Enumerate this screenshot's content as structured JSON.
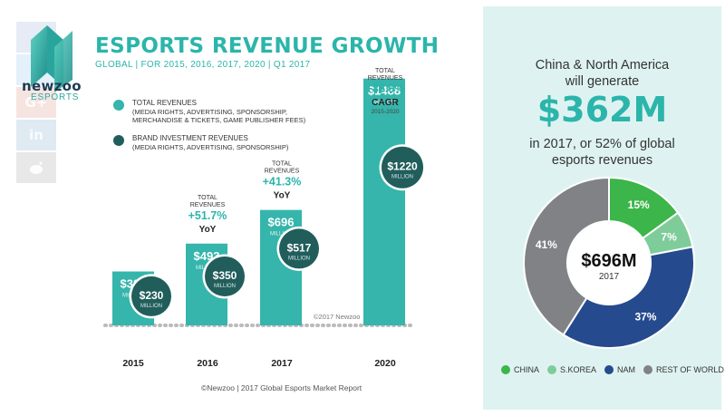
{
  "brand": {
    "name": "newzoo",
    "subname": "ESPORTS"
  },
  "social": {
    "icons": [
      "facebook-icon",
      "twitter-icon",
      "google-plus-icon",
      "linkedin-icon",
      "reddit-icon"
    ],
    "gplus_label": "G+",
    "linkedin_label": "in"
  },
  "header": {
    "title": "ESPORTS REVENUE GROWTH",
    "subtitle": "GLOBAL | FOR 2015, 2016, 2017, 2020 | Q1 2017"
  },
  "legend": {
    "total": {
      "label": "TOTAL REVENUES",
      "detail1": "(MEDIA RIGHTS, ADVERTISING, SPONSORSHIP,",
      "detail2": "MERCHANDISE & TICKETS, GAME PUBLISHER FEES)"
    },
    "brand": {
      "label": "BRAND INVESTMENT REVENUES",
      "detail1": "(MEDIA RIGHTS, ADVERTISING, SPONSORSHIP)"
    }
  },
  "colors": {
    "total": "#35b5ab",
    "brand": "#215d5b",
    "china": "#3cb54a",
    "skorea": "#7fcc9b",
    "nam": "#264a8e",
    "rest": "#808285",
    "accent": "#2bb5ab"
  },
  "chart_data": [
    {
      "type": "bar",
      "title": "ESPORTS REVENUE GROWTH",
      "subtitle": "GLOBAL | FOR 2015, 2016, 2017, 2020 | Q1 2017",
      "categories": [
        "2015",
        "2016",
        "2017",
        "2020"
      ],
      "series": [
        {
          "name": "TOTAL REVENUES",
          "values": [
            325,
            493,
            696,
            1488
          ],
          "labels": [
            "$325",
            "$493",
            "$696",
            "$1488"
          ]
        },
        {
          "name": "BRAND INVESTMENT REVENUES",
          "values": [
            230,
            350,
            517,
            1220
          ],
          "labels": [
            "$230",
            "$350",
            "$517",
            "$1220"
          ]
        }
      ],
      "unit_label": "MILLION",
      "growth_annotations": [
        {
          "category": "2016",
          "prefix": "TOTAL",
          "prefix2": "REVENUES",
          "value": "+51.7%",
          "kind": "YoY"
        },
        {
          "category": "2017",
          "prefix": "TOTAL",
          "prefix2": "REVENUES",
          "value": "+41.3%",
          "kind": "YoY"
        },
        {
          "category": "2020",
          "prefix": "TOTAL",
          "prefix2": "REVENUES",
          "value": "+35.6%",
          "kind": "CAGR",
          "range": "2015-2020"
        }
      ],
      "copyright": "©2017 Newzoo"
    },
    {
      "type": "pie",
      "center_value": "$696M",
      "center_label": "2017",
      "labels": [
        "CHINA",
        "S.KOREA",
        "NAM",
        "REST OF WORLD"
      ],
      "values": [
        15,
        7,
        37,
        41
      ],
      "value_labels": [
        "15%",
        "7%",
        "37%",
        "41%"
      ]
    }
  ],
  "panel": {
    "line1": "China & North America",
    "line2": "will generate",
    "big": "$362M",
    "line3": "in 2017, or 52% of global",
    "line4": "esports revenues"
  },
  "footer": "©Newzoo | 2017 Global Esports Market Report"
}
